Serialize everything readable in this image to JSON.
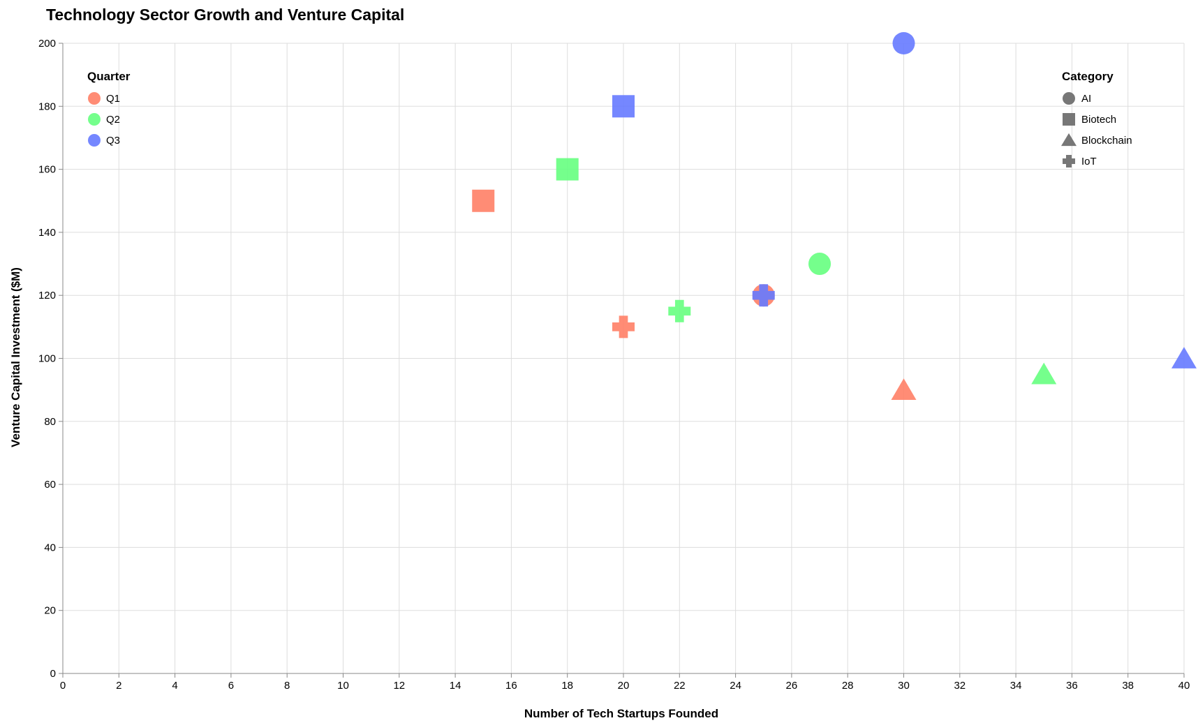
{
  "chart_data": {
    "type": "scatter",
    "title": "Technology Sector Growth and Venture Capital",
    "xlabel": "Number of Tech Startups Founded",
    "ylabel": "Venture Capital Investment ($M)",
    "xlim": [
      0,
      40
    ],
    "ylim": [
      0,
      200
    ],
    "x_ticks": [
      0,
      2,
      4,
      6,
      8,
      10,
      12,
      14,
      16,
      18,
      20,
      22,
      24,
      26,
      28,
      30,
      32,
      34,
      36,
      38,
      40
    ],
    "y_ticks": [
      0,
      20,
      40,
      60,
      80,
      100,
      120,
      140,
      160,
      180,
      200
    ],
    "grid": true,
    "color_legend": {
      "title": "Quarter",
      "placement": "top-left",
      "entries": [
        {
          "label": "Q1",
          "color": "#ff7f66"
        },
        {
          "label": "Q2",
          "color": "#66ff80"
        },
        {
          "label": "Q3",
          "color": "#667aff"
        }
      ]
    },
    "shape_legend": {
      "title": "Category",
      "placement": "top-right",
      "entries": [
        {
          "label": "AI",
          "shape": "circle"
        },
        {
          "label": "Biotech",
          "shape": "square"
        },
        {
          "label": "Blockchain",
          "shape": "triangle"
        },
        {
          "label": "IoT",
          "shape": "cross"
        }
      ]
    },
    "points": [
      {
        "quarter": "Q1",
        "category": "AI",
        "x": 25,
        "y": 120
      },
      {
        "quarter": "Q1",
        "category": "Biotech",
        "x": 15,
        "y": 150
      },
      {
        "quarter": "Q1",
        "category": "Blockchain",
        "x": 30,
        "y": 90
      },
      {
        "quarter": "Q1",
        "category": "IoT",
        "x": 20,
        "y": 110
      },
      {
        "quarter": "Q2",
        "category": "AI",
        "x": 27,
        "y": 130
      },
      {
        "quarter": "Q2",
        "category": "Biotech",
        "x": 18,
        "y": 160
      },
      {
        "quarter": "Q2",
        "category": "Blockchain",
        "x": 35,
        "y": 95
      },
      {
        "quarter": "Q2",
        "category": "IoT",
        "x": 22,
        "y": 115
      },
      {
        "quarter": "Q3",
        "category": "AI",
        "x": 30,
        "y": 200
      },
      {
        "quarter": "Q3",
        "category": "Biotech",
        "x": 20,
        "y": 180
      },
      {
        "quarter": "Q3",
        "category": "Blockchain",
        "x": 40,
        "y": 100
      },
      {
        "quarter": "Q3",
        "category": "IoT",
        "x": 25,
        "y": 120
      }
    ]
  }
}
